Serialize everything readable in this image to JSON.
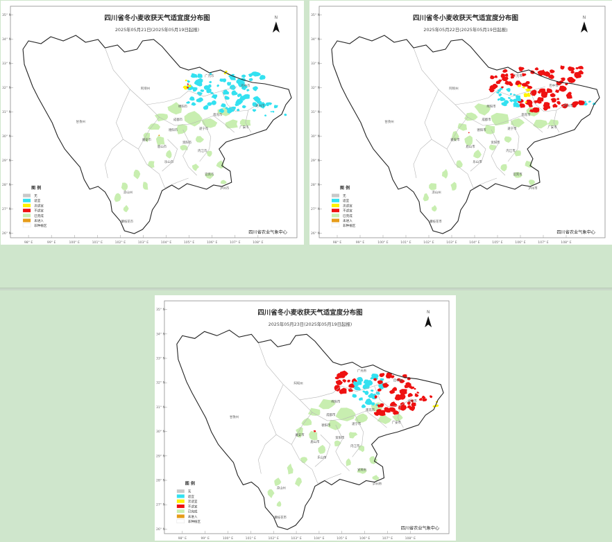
{
  "colors": {
    "page_bg": "#cfe6cc",
    "none": "#c8c8c8",
    "suitable": "#33e1f0",
    "less_suitable": "#fff200",
    "unsuitable": "#ee1111",
    "harvested": "#c8eeb0",
    "not_started": "#e69c19",
    "non_planting": "#ffffff"
  },
  "maps": [
    {
      "title": "四川省冬小麦收获天气适宜度分布图",
      "subtitle": "2025年05月21日(2025年05月19日起报)",
      "legend_title": "图 例",
      "legend": [
        "无",
        "适宜",
        "次适宜",
        "不适宜",
        "已完成",
        "未进入",
        "非种植区"
      ],
      "source": "四川省农业气象中心",
      "north": "N",
      "lon_ticks": [
        "98° E",
        "99° E",
        "100° E",
        "101° E",
        "102° E",
        "103° E",
        "104° E",
        "105° E",
        "106° E",
        "107° E",
        "108° E"
      ],
      "lat_ticks": [
        "35° N",
        "34° N",
        "33° N",
        "32° N",
        "31° N",
        "30° N",
        "29° N",
        "28° N",
        "27° N",
        "26° N"
      ],
      "cities": [
        "阿坝州",
        "甘孜州",
        "成都市",
        "雅安市",
        "乐山市",
        "内江市",
        "凉山州",
        "攀枝花市",
        "眉山市",
        "资阳市",
        "遂宁市",
        "南充市",
        "广安市",
        "达州市",
        "广元市",
        "巴中市",
        "绵阳市",
        "德阳市",
        "泸州市",
        "宜宾市"
      ]
    },
    {
      "title": "四川省冬小麦收获天气适宜度分布图",
      "subtitle": "2025年05月22日(2025年05月19日起报)",
      "legend_title": "图 例",
      "legend": [
        "无",
        "适宜",
        "次适宜",
        "不适宜",
        "已完成",
        "未进入",
        "非种植区"
      ],
      "source": "四川省农业气象中心",
      "north": "N",
      "lon_ticks": [
        "98° E",
        "99° E",
        "100° E",
        "101° E",
        "102° E",
        "103° E",
        "104° E",
        "105° E",
        "106° E",
        "107° E",
        "108° E"
      ],
      "lat_ticks": [
        "35° N",
        "34° N",
        "33° N",
        "32° N",
        "31° N",
        "30° N",
        "29° N",
        "28° N",
        "27° N",
        "26° N"
      ],
      "cities": [
        "阿坝州",
        "甘孜州",
        "成都市",
        "雅安市",
        "乐山市",
        "内江市",
        "凉山州",
        "攀枝花市",
        "眉山市",
        "资阳市",
        "遂宁市",
        "南充市",
        "广安市",
        "达州市",
        "广元市",
        "巴中市",
        "绵阳市",
        "德阳市",
        "泸州市",
        "宜宾市"
      ]
    },
    {
      "title": "四川省冬小麦收获天气适宜度分布图",
      "subtitle": "2025年05月23日(2025年05月19日起报)",
      "legend_title": "图 例",
      "legend": [
        "无",
        "适宜",
        "次适宜",
        "不适宜",
        "已完成",
        "未进入",
        "非种植区"
      ],
      "source": "四川省农业气象中心",
      "north": "N",
      "lon_ticks": [
        "98° E",
        "99° E",
        "100° E",
        "101° E",
        "102° E",
        "103° E",
        "104° E",
        "105° E",
        "106° E",
        "107° E",
        "108° E"
      ],
      "lat_ticks": [
        "35° N",
        "34° N",
        "33° N",
        "32° N",
        "31° N",
        "30° N",
        "29° N",
        "28° N",
        "27° N",
        "26° N"
      ],
      "cities": [
        "阿坝州",
        "甘孜州",
        "成都市",
        "雅安市",
        "乐山市",
        "内江市",
        "凉山州",
        "攀枝花市",
        "眉山市",
        "资阳市",
        "遂宁市",
        "南充市",
        "广安市",
        "达州市",
        "广元市",
        "巴中市",
        "绵阳市",
        "德阳市",
        "泸州市",
        "宜宾市"
      ]
    }
  ]
}
